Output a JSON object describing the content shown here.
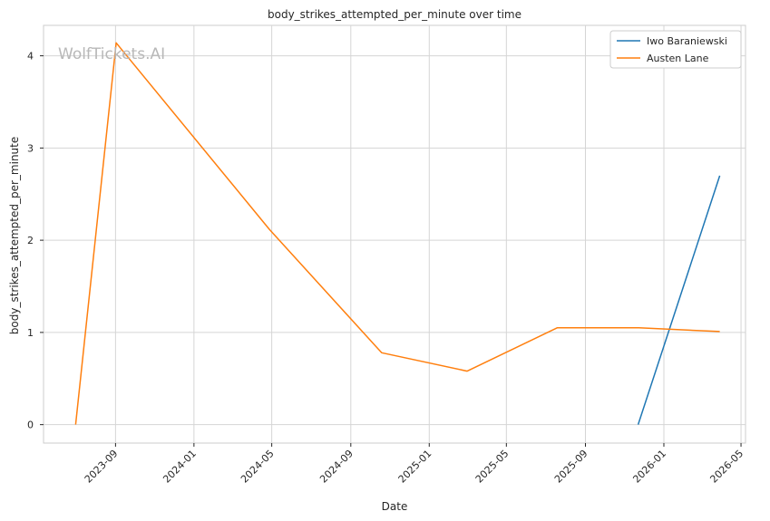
{
  "watermark": "WolfTickets.AI",
  "chart_data": {
    "type": "line",
    "title": "body_strikes_attempted_per_minute over time",
    "xlabel": "Date",
    "ylabel": "body_strikes_attempted_per_minute",
    "x_range": [
      "2023-05-12",
      "2026-05-08"
    ],
    "ylim": [
      -0.2,
      4.33
    ],
    "x_ticks": [
      "2023-09-01",
      "2024-01-01",
      "2024-05-01",
      "2024-09-01",
      "2025-01-01",
      "2025-05-01",
      "2025-09-01",
      "2026-01-01",
      "2026-05-01"
    ],
    "x_tick_labels": [
      "2023-09",
      "2024-01",
      "2024-05",
      "2024-09",
      "2025-01",
      "2025-05",
      "2025-09",
      "2026-01",
      "2026-05"
    ],
    "y_ticks": [
      0,
      1,
      2,
      3,
      4
    ],
    "grid": true,
    "legend_position": "top-right",
    "series": [
      {
        "name": "Iwo Baraniewski",
        "color": "#1f77b4",
        "x": [
          "2025-11-22",
          "2026-03-29"
        ],
        "y": [
          0.0,
          2.7
        ]
      },
      {
        "name": "Austen Lane",
        "color": "#ff7f0e",
        "x": [
          "2023-07-01",
          "2023-09-02",
          "2024-04-27",
          "2024-10-19",
          "2025-03-01",
          "2025-07-19",
          "2025-11-23",
          "2026-03-29"
        ],
        "y": [
          0.0,
          4.14,
          2.12,
          0.78,
          0.58,
          1.05,
          1.05,
          1.01
        ]
      }
    ]
  }
}
